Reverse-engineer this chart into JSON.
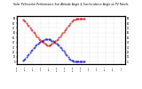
{
  "title": "Solar PV/Inverter Performance Sun Altitude Angle & Sun Incidence Angle on PV Panels",
  "background_color": "#ffffff",
  "grid_color": "#aaaaaa",
  "series": [
    {
      "label": "Sun Altitude Angle",
      "color": "#0000cc",
      "x": [
        5,
        6,
        7,
        8,
        9,
        10,
        11,
        12,
        13,
        14,
        15,
        16,
        17,
        18,
        19,
        20,
        21,
        22,
        23,
        24,
        25,
        26,
        27,
        28,
        29,
        30,
        31,
        32,
        33,
        34,
        35,
        36,
        37,
        38,
        39,
        40,
        41,
        42,
        43,
        44,
        45,
        46,
        47,
        48,
        49,
        50,
        51,
        52,
        53,
        54,
        55,
        56,
        57,
        58
      ],
      "y": [
        2,
        4,
        7,
        10,
        13,
        16,
        19,
        22,
        25,
        28,
        31,
        33,
        35,
        37,
        39,
        41,
        43,
        44,
        45,
        46,
        47,
        47,
        47,
        46,
        45,
        44,
        43,
        41,
        39,
        37,
        35,
        33,
        31,
        28,
        25,
        22,
        19,
        16,
        13,
        10,
        7,
        5,
        3,
        2,
        1,
        0,
        0,
        0,
        0,
        0,
        0,
        0,
        0,
        0
      ]
    },
    {
      "label": "Sun Incidence Angle on PV Panels",
      "color": "#cc0000",
      "x": [
        5,
        6,
        7,
        8,
        9,
        10,
        11,
        12,
        13,
        14,
        15,
        16,
        17,
        18,
        19,
        20,
        21,
        22,
        23,
        24,
        25,
        26,
        27,
        28,
        29,
        30,
        31,
        32,
        33,
        34,
        35,
        36,
        37,
        38,
        39,
        40,
        41,
        42,
        43,
        44,
        45,
        46,
        47,
        48,
        49,
        50,
        51,
        52,
        53,
        54,
        55,
        56,
        57,
        58
      ],
      "y": [
        88,
        86,
        83,
        80,
        77,
        74,
        71,
        68,
        65,
        62,
        59,
        56,
        53,
        50,
        47,
        45,
        43,
        41,
        39,
        37,
        35,
        34,
        33,
        34,
        35,
        37,
        39,
        41,
        43,
        45,
        47,
        50,
        53,
        56,
        59,
        62,
        65,
        68,
        71,
        74,
        77,
        80,
        83,
        85,
        87,
        88,
        89,
        89,
        89,
        89,
        89,
        89,
        89,
        89
      ]
    }
  ],
  "xlim": [
    0,
    93
  ],
  "ylim": [
    -5,
    95
  ],
  "xtick_positions": [
    0,
    6.92,
    13.85,
    20.77,
    27.69,
    34.62,
    41.54,
    48.46,
    55.38,
    62.31,
    69.23,
    76.15,
    83.08,
    90.0
  ],
  "xtick_labels": [
    "4:01a",
    "5:13",
    "6:26",
    "7:38",
    "8:50",
    "10:03",
    "11:15",
    "12:28",
    "1:40p",
    "2:52",
    "4:05",
    "5:17",
    "6:30",
    "7:42"
  ],
  "ytick_values": [
    0,
    10,
    20,
    30,
    40,
    50,
    60,
    70,
    80,
    90
  ],
  "ytick_labels": [
    "0",
    "10",
    "20",
    "30",
    "40",
    "50",
    "60",
    "70",
    "80",
    "90"
  ]
}
